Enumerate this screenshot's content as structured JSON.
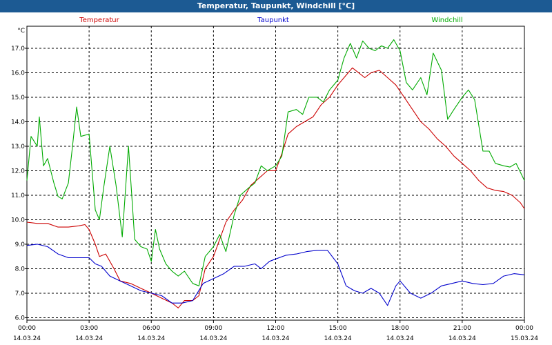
{
  "window": {
    "title": "Temperatur, Taupunkt, Windchill [°C]"
  },
  "chart_data": {
    "type": "line",
    "title": "Temperatur, Taupunkt, Windchill [°C]",
    "ylabel": "°C",
    "xlabel": "",
    "ylim": [
      5.9,
      17.9
    ],
    "yticks": [
      6.0,
      7.0,
      8.0,
      9.0,
      10.0,
      11.0,
      12.0,
      13.0,
      14.0,
      15.0,
      16.0,
      17.0
    ],
    "xlim": [
      0,
      24
    ],
    "xticks": [
      {
        "x": 0,
        "time": "00:00",
        "date": "14.03.24"
      },
      {
        "x": 3,
        "time": "03:00",
        "date": "14.03.24"
      },
      {
        "x": 6,
        "time": "06:00",
        "date": "14.03.24"
      },
      {
        "x": 9,
        "time": "09:00",
        "date": "14.03.24"
      },
      {
        "x": 12,
        "time": "12:00",
        "date": "14.03.24"
      },
      {
        "x": 15,
        "time": "15:00",
        "date": "14.03.24"
      },
      {
        "x": 18,
        "time": "18:00",
        "date": "14.03.24"
      },
      {
        "x": 21,
        "time": "21:00",
        "date": "14.03.24"
      },
      {
        "x": 24,
        "time": "00:00",
        "date": "15.03.24"
      }
    ],
    "grid": true,
    "legend_position": "top",
    "series": [
      {
        "name": "Temperatur",
        "color": "#cc0000",
        "points": [
          [
            0,
            9.9
          ],
          [
            0.5,
            9.85
          ],
          [
            1,
            9.85
          ],
          [
            1.5,
            9.7
          ],
          [
            2,
            9.7
          ],
          [
            2.5,
            9.75
          ],
          [
            2.8,
            9.8
          ],
          [
            3,
            9.6
          ],
          [
            3.3,
            9.0
          ],
          [
            3.5,
            8.5
          ],
          [
            3.8,
            8.6
          ],
          [
            4.2,
            8.0
          ],
          [
            4.5,
            7.5
          ],
          [
            5,
            7.4
          ],
          [
            5.5,
            7.2
          ],
          [
            6,
            7.0
          ],
          [
            6.5,
            6.8
          ],
          [
            7,
            6.6
          ],
          [
            7.3,
            6.4
          ],
          [
            7.6,
            6.7
          ],
          [
            8,
            6.7
          ],
          [
            8.3,
            6.9
          ],
          [
            8.6,
            8.0
          ],
          [
            9,
            8.5
          ],
          [
            9.3,
            9.2
          ],
          [
            9.6,
            9.9
          ],
          [
            10,
            10.4
          ],
          [
            10.4,
            10.8
          ],
          [
            10.8,
            11.4
          ],
          [
            11.2,
            11.7
          ],
          [
            11.6,
            12.0
          ],
          [
            12,
            12.0
          ],
          [
            12.3,
            12.7
          ],
          [
            12.6,
            13.5
          ],
          [
            13,
            13.8
          ],
          [
            13.4,
            14.0
          ],
          [
            13.8,
            14.2
          ],
          [
            14.2,
            14.7
          ],
          [
            14.6,
            15.0
          ],
          [
            15,
            15.5
          ],
          [
            15.4,
            15.9
          ],
          [
            15.7,
            16.2
          ],
          [
            16,
            16.0
          ],
          [
            16.3,
            15.8
          ],
          [
            16.6,
            16.0
          ],
          [
            17,
            16.1
          ],
          [
            17.4,
            15.8
          ],
          [
            17.8,
            15.5
          ],
          [
            18.2,
            15.0
          ],
          [
            18.6,
            14.5
          ],
          [
            19,
            14.0
          ],
          [
            19.4,
            13.7
          ],
          [
            19.8,
            13.3
          ],
          [
            20.2,
            13.0
          ],
          [
            20.6,
            12.6
          ],
          [
            21,
            12.3
          ],
          [
            21.4,
            12.0
          ],
          [
            21.8,
            11.6
          ],
          [
            22.2,
            11.3
          ],
          [
            22.6,
            11.2
          ],
          [
            23,
            11.15
          ],
          [
            23.4,
            11.0
          ],
          [
            23.8,
            10.7
          ],
          [
            24,
            10.45
          ]
        ]
      },
      {
        "name": "Taupunkt",
        "color": "#0000cc",
        "points": [
          [
            0,
            8.95
          ],
          [
            0.5,
            9.0
          ],
          [
            1,
            8.9
          ],
          [
            1.5,
            8.6
          ],
          [
            2,
            8.45
          ],
          [
            2.5,
            8.45
          ],
          [
            3,
            8.45
          ],
          [
            3.3,
            8.2
          ],
          [
            3.6,
            8.1
          ],
          [
            4,
            7.7
          ],
          [
            4.5,
            7.5
          ],
          [
            5,
            7.3
          ],
          [
            5.5,
            7.1
          ],
          [
            6,
            7.0
          ],
          [
            6.5,
            6.9
          ],
          [
            7,
            6.6
          ],
          [
            7.5,
            6.6
          ],
          [
            8,
            6.7
          ],
          [
            8.5,
            7.4
          ],
          [
            9,
            7.6
          ],
          [
            9.5,
            7.8
          ],
          [
            10,
            8.1
          ],
          [
            10.5,
            8.1
          ],
          [
            11,
            8.2
          ],
          [
            11.3,
            8.0
          ],
          [
            11.7,
            8.3
          ],
          [
            12,
            8.4
          ],
          [
            12.5,
            8.55
          ],
          [
            13,
            8.6
          ],
          [
            13.5,
            8.7
          ],
          [
            14,
            8.75
          ],
          [
            14.5,
            8.75
          ],
          [
            15,
            8.2
          ],
          [
            15.4,
            7.3
          ],
          [
            15.8,
            7.1
          ],
          [
            16.2,
            7.0
          ],
          [
            16.6,
            7.2
          ],
          [
            17,
            7.0
          ],
          [
            17.4,
            6.5
          ],
          [
            17.8,
            7.3
          ],
          [
            18,
            7.5
          ],
          [
            18.5,
            7.0
          ],
          [
            19,
            6.8
          ],
          [
            19.5,
            7.0
          ],
          [
            20,
            7.3
          ],
          [
            20.5,
            7.4
          ],
          [
            21,
            7.5
          ],
          [
            21.5,
            7.4
          ],
          [
            22,
            7.35
          ],
          [
            22.5,
            7.4
          ],
          [
            23,
            7.7
          ],
          [
            23.5,
            7.8
          ],
          [
            24,
            7.75
          ]
        ]
      },
      {
        "name": "Windchill",
        "color": "#00aa00",
        "points": [
          [
            0,
            11.6
          ],
          [
            0.2,
            13.4
          ],
          [
            0.5,
            13.0
          ],
          [
            0.6,
            14.2
          ],
          [
            0.8,
            12.2
          ],
          [
            1,
            12.5
          ],
          [
            1.3,
            11.5
          ],
          [
            1.5,
            10.95
          ],
          [
            1.7,
            10.85
          ],
          [
            2,
            11.5
          ],
          [
            2.2,
            13.0
          ],
          [
            2.4,
            14.6
          ],
          [
            2.6,
            13.4
          ],
          [
            3,
            13.5
          ],
          [
            3.3,
            10.4
          ],
          [
            3.5,
            10.0
          ],
          [
            3.7,
            11.3
          ],
          [
            4,
            13.0
          ],
          [
            4.3,
            11.4
          ],
          [
            4.6,
            9.3
          ],
          [
            4.9,
            13.0
          ],
          [
            5.2,
            9.2
          ],
          [
            5.5,
            8.9
          ],
          [
            5.8,
            8.8
          ],
          [
            6,
            8.3
          ],
          [
            6.2,
            9.6
          ],
          [
            6.4,
            8.8
          ],
          [
            6.7,
            8.2
          ],
          [
            7,
            7.9
          ],
          [
            7.3,
            7.7
          ],
          [
            7.6,
            7.9
          ],
          [
            8,
            7.4
          ],
          [
            8.3,
            7.3
          ],
          [
            8.6,
            8.5
          ],
          [
            9,
            8.9
          ],
          [
            9.3,
            9.4
          ],
          [
            9.6,
            8.7
          ],
          [
            10,
            10.2
          ],
          [
            10.3,
            11.0
          ],
          [
            10.7,
            11.3
          ],
          [
            11,
            11.5
          ],
          [
            11.3,
            12.2
          ],
          [
            11.6,
            12.0
          ],
          [
            12,
            12.2
          ],
          [
            12.3,
            12.6
          ],
          [
            12.6,
            14.4
          ],
          [
            13,
            14.5
          ],
          [
            13.3,
            14.3
          ],
          [
            13.6,
            15.0
          ],
          [
            14,
            15.0
          ],
          [
            14.3,
            14.8
          ],
          [
            14.6,
            15.3
          ],
          [
            15,
            15.7
          ],
          [
            15.3,
            16.6
          ],
          [
            15.6,
            17.2
          ],
          [
            15.9,
            16.6
          ],
          [
            16.2,
            17.3
          ],
          [
            16.5,
            17.0
          ],
          [
            16.8,
            16.9
          ],
          [
            17.1,
            17.1
          ],
          [
            17.4,
            17.0
          ],
          [
            17.7,
            17.35
          ],
          [
            18,
            16.9
          ],
          [
            18.3,
            15.6
          ],
          [
            18.6,
            15.3
          ],
          [
            19,
            15.8
          ],
          [
            19.3,
            15.1
          ],
          [
            19.6,
            16.8
          ],
          [
            20,
            16.1
          ],
          [
            20.3,
            14.1
          ],
          [
            20.6,
            14.5
          ],
          [
            21,
            15.0
          ],
          [
            21.3,
            15.3
          ],
          [
            21.6,
            14.9
          ],
          [
            22,
            12.8
          ],
          [
            22.3,
            12.8
          ],
          [
            22.6,
            12.3
          ],
          [
            23,
            12.2
          ],
          [
            23.3,
            12.15
          ],
          [
            23.6,
            12.3
          ],
          [
            24,
            11.6
          ]
        ]
      }
    ]
  }
}
